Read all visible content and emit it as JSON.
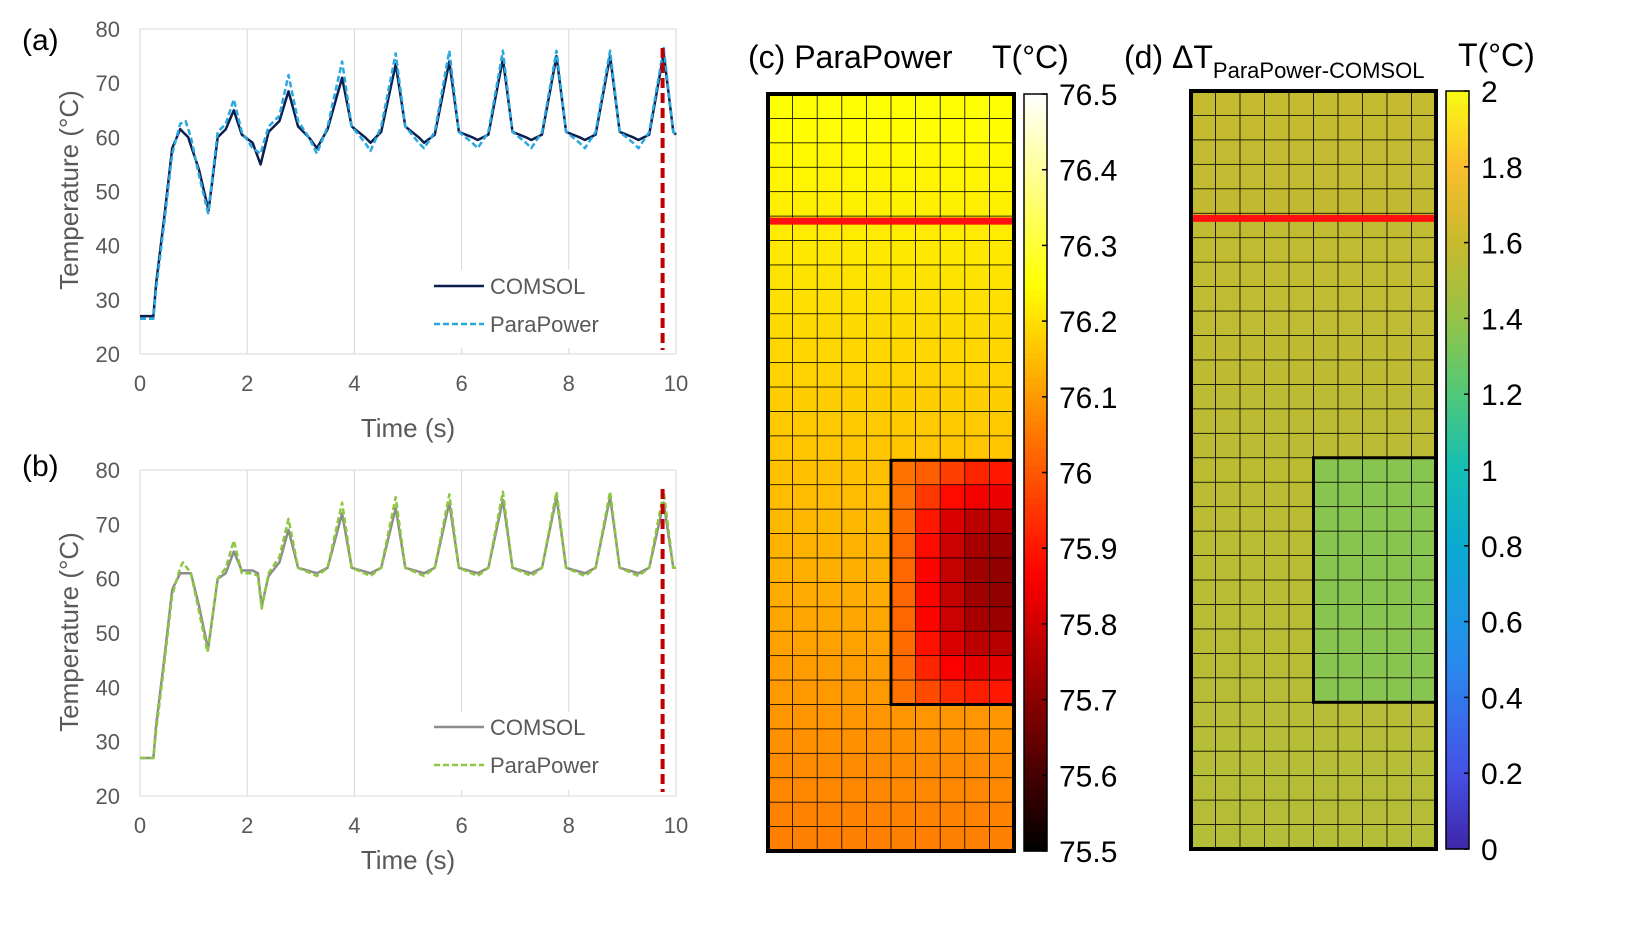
{
  "chart_data": [
    {
      "id": "a",
      "type": "line",
      "panel_label": "(a)",
      "xlabel": "Time (s)",
      "ylabel": "Temperature (°C)",
      "xlim": [
        0,
        10
      ],
      "ylim": [
        20,
        80
      ],
      "xticks": [
        "0",
        "2",
        "4",
        "6",
        "8",
        "10"
      ],
      "yticks": [
        "20",
        "30",
        "40",
        "50",
        "60",
        "70",
        "80"
      ],
      "grid": "vertical",
      "legend_position": "bottom-right",
      "marker_x": 9.75,
      "series": [
        {
          "name": "COMSOL",
          "color": "#0b1f4f",
          "dash": "solid",
          "points": [
            [
              0,
              27
            ],
            [
              0.25,
              27
            ],
            [
              0.3,
              33
            ],
            [
              0.45,
              45
            ],
            [
              0.6,
              58
            ],
            [
              0.75,
              61.5
            ],
            [
              0.9,
              60
            ],
            [
              1.1,
              54
            ],
            [
              1.28,
              46.5
            ],
            [
              1.45,
              60
            ],
            [
              1.6,
              61.5
            ],
            [
              1.75,
              65
            ],
            [
              1.9,
              60.5
            ],
            [
              2.1,
              59
            ],
            [
              2.25,
              55
            ],
            [
              2.4,
              61
            ],
            [
              2.6,
              63
            ],
            [
              2.77,
              68.5
            ],
            [
              2.95,
              62
            ],
            [
              3.15,
              60
            ],
            [
              3.3,
              58
            ],
            [
              3.5,
              61.5
            ],
            [
              3.77,
              71
            ],
            [
              3.95,
              62
            ],
            [
              4.2,
              60
            ],
            [
              4.3,
              59
            ],
            [
              4.5,
              61
            ],
            [
              4.77,
              73.5
            ],
            [
              4.95,
              62
            ],
            [
              5.2,
              60
            ],
            [
              5.3,
              59
            ],
            [
              5.5,
              60.5
            ],
            [
              5.77,
              74
            ],
            [
              5.95,
              61
            ],
            [
              6.2,
              60
            ],
            [
              6.3,
              59.5
            ],
            [
              6.5,
              60.5
            ],
            [
              6.77,
              74.5
            ],
            [
              6.95,
              61
            ],
            [
              7.2,
              60
            ],
            [
              7.3,
              59.5
            ],
            [
              7.5,
              60.5
            ],
            [
              7.77,
              75
            ],
            [
              7.95,
              61
            ],
            [
              8.2,
              60
            ],
            [
              8.3,
              59.5
            ],
            [
              8.5,
              60.5
            ],
            [
              8.77,
              75
            ],
            [
              8.95,
              61
            ],
            [
              9.2,
              60
            ],
            [
              9.3,
              59.5
            ],
            [
              9.5,
              60.5
            ],
            [
              9.77,
              75.5
            ],
            [
              9.95,
              61
            ],
            [
              10,
              60.5
            ]
          ]
        },
        {
          "name": "ParaPower",
          "color": "#2aa8df",
          "dash": "dashed",
          "points": [
            [
              0,
              26.5
            ],
            [
              0.25,
              26.5
            ],
            [
              0.3,
              32
            ],
            [
              0.45,
              44
            ],
            [
              0.6,
              57
            ],
            [
              0.75,
              62.5
            ],
            [
              0.85,
              63
            ],
            [
              0.95,
              60
            ],
            [
              1.1,
              53
            ],
            [
              1.27,
              46
            ],
            [
              1.45,
              61
            ],
            [
              1.6,
              62.5
            ],
            [
              1.75,
              67
            ],
            [
              1.9,
              61
            ],
            [
              2.1,
              58
            ],
            [
              2.25,
              57
            ],
            [
              2.4,
              62
            ],
            [
              2.6,
              64
            ],
            [
              2.77,
              71.5
            ],
            [
              2.95,
              63
            ],
            [
              3.15,
              60
            ],
            [
              3.3,
              57
            ],
            [
              3.5,
              62
            ],
            [
              3.77,
              74
            ],
            [
              3.95,
              62
            ],
            [
              4.2,
              59
            ],
            [
              4.3,
              57.5
            ],
            [
              4.5,
              62
            ],
            [
              4.77,
              75.5
            ],
            [
              4.95,
              62
            ],
            [
              5.2,
              59
            ],
            [
              5.3,
              58
            ],
            [
              5.5,
              61
            ],
            [
              5.77,
              76
            ],
            [
              5.95,
              61
            ],
            [
              6.2,
              59
            ],
            [
              6.3,
              58
            ],
            [
              6.5,
              61
            ],
            [
              6.77,
              76
            ],
            [
              6.95,
              61
            ],
            [
              7.2,
              59
            ],
            [
              7.3,
              58
            ],
            [
              7.5,
              61
            ],
            [
              7.77,
              76
            ],
            [
              7.95,
              61
            ],
            [
              8.2,
              59
            ],
            [
              8.3,
              58
            ],
            [
              8.5,
              61
            ],
            [
              8.77,
              76
            ],
            [
              8.95,
              61
            ],
            [
              9.2,
              59
            ],
            [
              9.3,
              58
            ],
            [
              9.5,
              61
            ],
            [
              9.77,
              76.5
            ],
            [
              9.95,
              61
            ],
            [
              10,
              60.5
            ]
          ]
        }
      ]
    },
    {
      "id": "b",
      "type": "line",
      "panel_label": "(b)",
      "xlabel": "Time (s)",
      "ylabel": "Temperature (°C)",
      "xlim": [
        0,
        10
      ],
      "ylim": [
        20,
        80
      ],
      "xticks": [
        "0",
        "2",
        "4",
        "6",
        "8",
        "10"
      ],
      "yticks": [
        "20",
        "30",
        "40",
        "50",
        "60",
        "70",
        "80"
      ],
      "grid": "vertical",
      "legend_position": "bottom-right",
      "marker_x": 9.75,
      "series": [
        {
          "name": "COMSOL",
          "color": "#8c8c8c",
          "dash": "solid",
          "points": [
            [
              0,
              27
            ],
            [
              0.25,
              27
            ],
            [
              0.3,
              33
            ],
            [
              0.45,
              45
            ],
            [
              0.6,
              58
            ],
            [
              0.75,
              61
            ],
            [
              0.95,
              61
            ],
            [
              1.1,
              55
            ],
            [
              1.27,
              47
            ],
            [
              1.45,
              60
            ],
            [
              1.6,
              61
            ],
            [
              1.75,
              65
            ],
            [
              1.9,
              61.5
            ],
            [
              2.1,
              61.5
            ],
            [
              2.2,
              61
            ],
            [
              2.27,
              55
            ],
            [
              2.4,
              60.5
            ],
            [
              2.6,
              63
            ],
            [
              2.77,
              69
            ],
            [
              2.95,
              62
            ],
            [
              3.3,
              61
            ],
            [
              3.5,
              62
            ],
            [
              3.77,
              72
            ],
            [
              3.95,
              62
            ],
            [
              4.3,
              61
            ],
            [
              4.5,
              62
            ],
            [
              4.77,
              73
            ],
            [
              4.95,
              62
            ],
            [
              5.3,
              61
            ],
            [
              5.5,
              62
            ],
            [
              5.77,
              74
            ],
            [
              5.95,
              62
            ],
            [
              6.3,
              61
            ],
            [
              6.5,
              62
            ],
            [
              6.77,
              74.5
            ],
            [
              6.95,
              62
            ],
            [
              7.3,
              61
            ],
            [
              7.5,
              62
            ],
            [
              7.77,
              75
            ],
            [
              7.95,
              62
            ],
            [
              8.3,
              61
            ],
            [
              8.5,
              62
            ],
            [
              8.77,
              75
            ],
            [
              8.95,
              62
            ],
            [
              9.3,
              61
            ],
            [
              9.5,
              62
            ],
            [
              9.77,
              74
            ],
            [
              9.95,
              62
            ],
            [
              10,
              62
            ]
          ]
        },
        {
          "name": "ParaPower",
          "color": "#8dc63f",
          "dash": "dashed",
          "points": [
            [
              0,
              27
            ],
            [
              0.25,
              27
            ],
            [
              0.3,
              32
            ],
            [
              0.45,
              44
            ],
            [
              0.6,
              57
            ],
            [
              0.75,
              62
            ],
            [
              0.8,
              63
            ],
            [
              0.95,
              61
            ],
            [
              1.1,
              54
            ],
            [
              1.26,
              46.5
            ],
            [
              1.45,
              60
            ],
            [
              1.6,
              62
            ],
            [
              1.75,
              67
            ],
            [
              1.9,
              61
            ],
            [
              2.1,
              61
            ],
            [
              2.2,
              60.5
            ],
            [
              2.27,
              54.5
            ],
            [
              2.4,
              61
            ],
            [
              2.6,
              64
            ],
            [
              2.77,
              71
            ],
            [
              2.95,
              62
            ],
            [
              3.3,
              60.5
            ],
            [
              3.5,
              62
            ],
            [
              3.77,
              74
            ],
            [
              3.95,
              62
            ],
            [
              4.3,
              60.5
            ],
            [
              4.5,
              62
            ],
            [
              4.77,
              75
            ],
            [
              4.95,
              62
            ],
            [
              5.3,
              60.5
            ],
            [
              5.5,
              62
            ],
            [
              5.77,
              75.5
            ],
            [
              5.95,
              62
            ],
            [
              6.3,
              60.5
            ],
            [
              6.5,
              62
            ],
            [
              6.77,
              76
            ],
            [
              6.95,
              62
            ],
            [
              7.3,
              60.5
            ],
            [
              7.5,
              62
            ],
            [
              7.77,
              76
            ],
            [
              7.95,
              62
            ],
            [
              8.3,
              60.5
            ],
            [
              8.5,
              62
            ],
            [
              8.77,
              76
            ],
            [
              8.95,
              62
            ],
            [
              9.3,
              60.5
            ],
            [
              9.5,
              62
            ],
            [
              9.77,
              76
            ],
            [
              9.95,
              62
            ],
            [
              10,
              62
            ]
          ]
        }
      ]
    },
    {
      "id": "c",
      "type": "heatmap",
      "title": "(c) ParaPower",
      "unit_label": "T(°C)",
      "grid_cols": 10,
      "grid_rows": 31,
      "colorbar": {
        "min": 75.5,
        "max": 76.5,
        "ticks": [
          "75.5",
          "75.6",
          "75.7",
          "75.8",
          "75.9",
          "76",
          "76.1",
          "76.2",
          "76.3",
          "76.4",
          "76.5"
        ],
        "colormap": "hot"
      },
      "base_value_top": 76.25,
      "base_value_bottom": 76.06,
      "region_cols": [
        5,
        9
      ],
      "region_rows": [
        15,
        24
      ],
      "region_values": [
        [
          76.04,
          76.01,
          75.96,
          75.92,
          75.9
        ],
        [
          76.04,
          75.95,
          75.88,
          75.85,
          75.84
        ],
        [
          76.03,
          75.9,
          75.81,
          75.77,
          75.76
        ],
        [
          76.02,
          75.88,
          75.79,
          75.74,
          75.72
        ],
        [
          76.02,
          75.87,
          75.78,
          75.73,
          75.71
        ],
        [
          76.02,
          75.87,
          75.78,
          75.73,
          75.71
        ],
        [
          76.02,
          75.87,
          75.79,
          75.74,
          75.72
        ],
        [
          76.03,
          75.89,
          75.81,
          75.77,
          75.76
        ],
        [
          76.03,
          75.92,
          75.86,
          75.83,
          75.83
        ],
        [
          76.04,
          75.98,
          75.93,
          75.91,
          75.9
        ]
      ],
      "redline_row_fraction": 0.168
    },
    {
      "id": "d",
      "type": "heatmap",
      "title_prefix": "(d) ΔT",
      "title_subscript": "ParaPower-COMSOL",
      "unit_label": "T(°C)",
      "grid_cols": 10,
      "grid_rows": 31,
      "colorbar": {
        "min": 0,
        "max": 2,
        "ticks": [
          "0",
          "0.2",
          "0.4",
          "0.6",
          "0.8",
          "1",
          "1.2",
          "1.4",
          "1.6",
          "1.8",
          "2"
        ],
        "colormap": "parula"
      },
      "base_value_top": 1.58,
      "base_value_bottom": 1.52,
      "region_cols": [
        5,
        9
      ],
      "region_rows": [
        15,
        24
      ],
      "region_value": 1.36,
      "redline_row_fraction": 0.168
    }
  ]
}
